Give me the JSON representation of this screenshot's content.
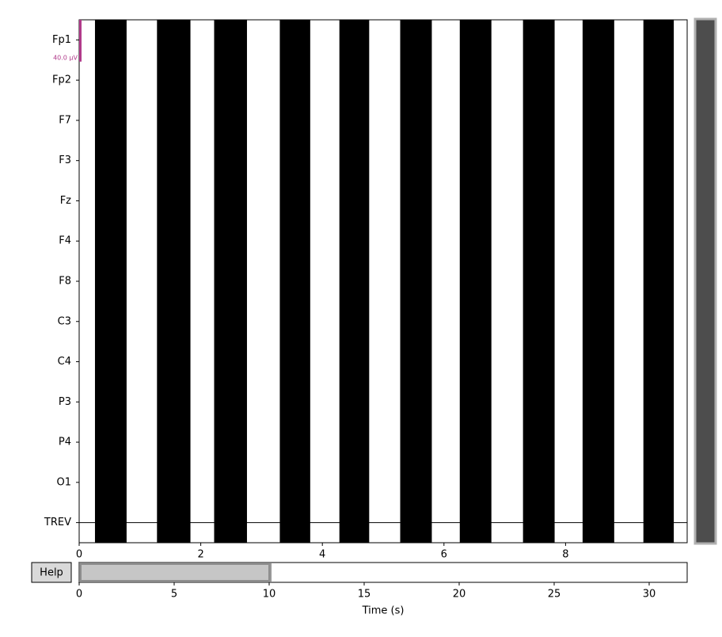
{
  "chart_data": {
    "type": "timeseries",
    "channels": [
      "Fp1",
      "Fp2",
      "F7",
      "F3",
      "Fz",
      "F4",
      "F8",
      "C3",
      "C4",
      "P3",
      "P4",
      "O1",
      "TREV"
    ],
    "scale_label": "40.0 µV",
    "scale_color": "#b03a8a",
    "trace_color": "#000000",
    "bursts": [
      [
        0.26,
        0.78
      ],
      [
        1.28,
        1.83
      ],
      [
        2.22,
        2.76
      ],
      [
        3.3,
        3.8
      ],
      [
        4.28,
        4.77
      ],
      [
        5.28,
        5.8
      ],
      [
        6.26,
        6.78
      ],
      [
        7.3,
        7.82
      ],
      [
        8.28,
        8.8
      ],
      [
        9.28,
        9.78
      ]
    ],
    "xlim": [
      0,
      10
    ],
    "xticks": [
      0,
      2,
      4,
      6,
      8
    ],
    "overview": {
      "xlim": [
        0,
        32
      ],
      "xticks": [
        0,
        5,
        10,
        15,
        20,
        25,
        30
      ],
      "window": [
        0,
        10
      ],
      "xlabel": "Time (s)"
    },
    "help_button": "Help"
  }
}
